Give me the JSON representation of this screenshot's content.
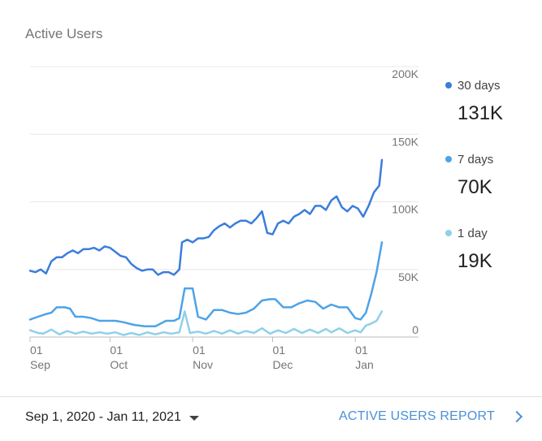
{
  "card": {
    "title": "Active Users"
  },
  "chart_data": {
    "type": "line",
    "title": "Active Users",
    "xlabel": "",
    "ylabel": "",
    "x_range": [
      "2020-09-01",
      "2021-01-11"
    ],
    "ylim": [
      0,
      200000
    ],
    "y_ticks": [
      0,
      50000,
      100000,
      150000,
      200000
    ],
    "y_tick_labels": [
      "0",
      "50K",
      "100K",
      "150K",
      "200K"
    ],
    "grid": true,
    "legend_position": "right",
    "x_ticks": [
      {
        "date": "2020-09-01",
        "day": "01",
        "month": "Sep"
      },
      {
        "date": "2020-10-01",
        "day": "01",
        "month": "Oct"
      },
      {
        "date": "2020-11-01",
        "day": "01",
        "month": "Nov"
      },
      {
        "date": "2020-12-01",
        "day": "01",
        "month": "Dec"
      },
      {
        "date": "2021-01-01",
        "day": "01",
        "month": "Jan"
      }
    ],
    "series": [
      {
        "name": "30 days",
        "value_label": "131K",
        "color": "#3b7ddd",
        "points": [
          [
            "2020-09-01",
            49000
          ],
          [
            "2020-09-03",
            48000
          ],
          [
            "2020-09-05",
            50000
          ],
          [
            "2020-09-07",
            47000
          ],
          [
            "2020-09-09",
            56000
          ],
          [
            "2020-09-11",
            59000
          ],
          [
            "2020-09-13",
            59000
          ],
          [
            "2020-09-15",
            62000
          ],
          [
            "2020-09-17",
            64000
          ],
          [
            "2020-09-19",
            62000
          ],
          [
            "2020-09-21",
            65000
          ],
          [
            "2020-09-23",
            65000
          ],
          [
            "2020-09-25",
            66000
          ],
          [
            "2020-09-27",
            64000
          ],
          [
            "2020-09-29",
            67000
          ],
          [
            "2020-10-01",
            66000
          ],
          [
            "2020-10-03",
            63000
          ],
          [
            "2020-10-05",
            60000
          ],
          [
            "2020-10-07",
            59000
          ],
          [
            "2020-10-09",
            54000
          ],
          [
            "2020-10-11",
            51000
          ],
          [
            "2020-10-13",
            49000
          ],
          [
            "2020-10-15",
            50000
          ],
          [
            "2020-10-17",
            50000
          ],
          [
            "2020-10-19",
            46000
          ],
          [
            "2020-10-21",
            48000
          ],
          [
            "2020-10-23",
            48000
          ],
          [
            "2020-10-25",
            46000
          ],
          [
            "2020-10-27",
            50000
          ],
          [
            "2020-10-28",
            70000
          ],
          [
            "2020-10-30",
            72000
          ],
          [
            "2020-11-01",
            70000
          ],
          [
            "2020-11-03",
            73000
          ],
          [
            "2020-11-05",
            73000
          ],
          [
            "2020-11-07",
            74000
          ],
          [
            "2020-11-09",
            79000
          ],
          [
            "2020-11-11",
            82000
          ],
          [
            "2020-11-13",
            84000
          ],
          [
            "2020-11-15",
            81000
          ],
          [
            "2020-11-17",
            84000
          ],
          [
            "2020-11-19",
            86000
          ],
          [
            "2020-11-21",
            86000
          ],
          [
            "2020-11-23",
            84000
          ],
          [
            "2020-11-25",
            88000
          ],
          [
            "2020-11-27",
            93000
          ],
          [
            "2020-11-29",
            77000
          ],
          [
            "2020-12-01",
            76000
          ],
          [
            "2020-12-03",
            84000
          ],
          [
            "2020-12-05",
            86000
          ],
          [
            "2020-12-07",
            84000
          ],
          [
            "2020-12-09",
            89000
          ],
          [
            "2020-12-11",
            91000
          ],
          [
            "2020-12-13",
            94000
          ],
          [
            "2020-12-15",
            91000
          ],
          [
            "2020-12-17",
            97000
          ],
          [
            "2020-12-19",
            97000
          ],
          [
            "2020-12-21",
            94000
          ],
          [
            "2020-12-23",
            101000
          ],
          [
            "2020-12-25",
            104000
          ],
          [
            "2020-12-27",
            96000
          ],
          [
            "2020-12-29",
            93000
          ],
          [
            "2020-12-31",
            97000
          ],
          [
            "2021-01-02",
            95000
          ],
          [
            "2021-01-04",
            89000
          ],
          [
            "2021-01-06",
            97000
          ],
          [
            "2021-01-08",
            107000
          ],
          [
            "2021-01-10",
            112000
          ],
          [
            "2021-01-11",
            131000
          ]
        ]
      },
      {
        "name": "7 days",
        "value_label": "70K",
        "color": "#4da3e8",
        "points": [
          [
            "2020-09-01",
            13000
          ],
          [
            "2020-09-04",
            15000
          ],
          [
            "2020-09-07",
            17000
          ],
          [
            "2020-09-09",
            18000
          ],
          [
            "2020-09-11",
            22000
          ],
          [
            "2020-09-14",
            22000
          ],
          [
            "2020-09-16",
            21000
          ],
          [
            "2020-09-18",
            15000
          ],
          [
            "2020-09-21",
            15000
          ],
          [
            "2020-09-24",
            14000
          ],
          [
            "2020-09-27",
            12000
          ],
          [
            "2020-09-30",
            12000
          ],
          [
            "2020-10-03",
            12000
          ],
          [
            "2020-10-06",
            11000
          ],
          [
            "2020-10-10",
            9000
          ],
          [
            "2020-10-14",
            8000
          ],
          [
            "2020-10-18",
            8000
          ],
          [
            "2020-10-22",
            12000
          ],
          [
            "2020-10-25",
            12000
          ],
          [
            "2020-10-27",
            14000
          ],
          [
            "2020-10-29",
            36000
          ],
          [
            "2020-11-01",
            36000
          ],
          [
            "2020-11-03",
            15000
          ],
          [
            "2020-11-06",
            13000
          ],
          [
            "2020-11-09",
            20000
          ],
          [
            "2020-11-12",
            20000
          ],
          [
            "2020-11-15",
            18000
          ],
          [
            "2020-11-18",
            17000
          ],
          [
            "2020-11-21",
            18000
          ],
          [
            "2020-11-24",
            21000
          ],
          [
            "2020-11-27",
            27000
          ],
          [
            "2020-11-30",
            28000
          ],
          [
            "2020-12-02",
            28000
          ],
          [
            "2020-12-05",
            22000
          ],
          [
            "2020-12-08",
            22000
          ],
          [
            "2020-12-11",
            25000
          ],
          [
            "2020-12-14",
            27000
          ],
          [
            "2020-12-17",
            26000
          ],
          [
            "2020-12-20",
            21000
          ],
          [
            "2020-12-23",
            24000
          ],
          [
            "2020-12-26",
            22000
          ],
          [
            "2020-12-29",
            22000
          ],
          [
            "2021-01-01",
            14000
          ],
          [
            "2021-01-03",
            13000
          ],
          [
            "2021-01-05",
            18000
          ],
          [
            "2021-01-07",
            32000
          ],
          [
            "2021-01-09",
            48000
          ],
          [
            "2021-01-11",
            70000
          ]
        ]
      },
      {
        "name": "1 day",
        "value_label": "19K",
        "color": "#8fd0ea",
        "points": [
          [
            "2020-09-01",
            5000
          ],
          [
            "2020-09-04",
            3000
          ],
          [
            "2020-09-06",
            2500
          ],
          [
            "2020-09-09",
            5500
          ],
          [
            "2020-09-12",
            2000
          ],
          [
            "2020-09-15",
            4500
          ],
          [
            "2020-09-18",
            2500
          ],
          [
            "2020-09-21",
            4000
          ],
          [
            "2020-09-24",
            2500
          ],
          [
            "2020-09-27",
            3500
          ],
          [
            "2020-09-30",
            2500
          ],
          [
            "2020-10-03",
            3500
          ],
          [
            "2020-10-06",
            1500
          ],
          [
            "2020-10-09",
            3000
          ],
          [
            "2020-10-12",
            1500
          ],
          [
            "2020-10-15",
            3500
          ],
          [
            "2020-10-18",
            2000
          ],
          [
            "2020-10-21",
            3500
          ],
          [
            "2020-10-24",
            2500
          ],
          [
            "2020-10-27",
            3500
          ],
          [
            "2020-10-29",
            19000
          ],
          [
            "2020-10-31",
            3000
          ],
          [
            "2020-11-03",
            4000
          ],
          [
            "2020-11-06",
            2500
          ],
          [
            "2020-11-09",
            4500
          ],
          [
            "2020-11-12",
            2500
          ],
          [
            "2020-11-15",
            5000
          ],
          [
            "2020-11-18",
            2500
          ],
          [
            "2020-11-21",
            4500
          ],
          [
            "2020-11-24",
            3000
          ],
          [
            "2020-11-27",
            6500
          ],
          [
            "2020-11-30",
            2500
          ],
          [
            "2020-12-03",
            5000
          ],
          [
            "2020-12-06",
            3000
          ],
          [
            "2020-12-09",
            6000
          ],
          [
            "2020-12-12",
            3000
          ],
          [
            "2020-12-15",
            5500
          ],
          [
            "2020-12-18",
            3000
          ],
          [
            "2020-12-21",
            6000
          ],
          [
            "2020-12-23",
            3500
          ],
          [
            "2020-12-26",
            6500
          ],
          [
            "2020-12-29",
            3000
          ],
          [
            "2021-01-01",
            5000
          ],
          [
            "2021-01-03",
            3500
          ],
          [
            "2021-01-05",
            8500
          ],
          [
            "2021-01-07",
            10000
          ],
          [
            "2021-01-09",
            12000
          ],
          [
            "2021-01-11",
            19000
          ]
        ]
      }
    ]
  },
  "footer": {
    "date_range": "Sep 1, 2020 - Jan 11, 2021",
    "report_link": "ACTIVE USERS REPORT"
  }
}
